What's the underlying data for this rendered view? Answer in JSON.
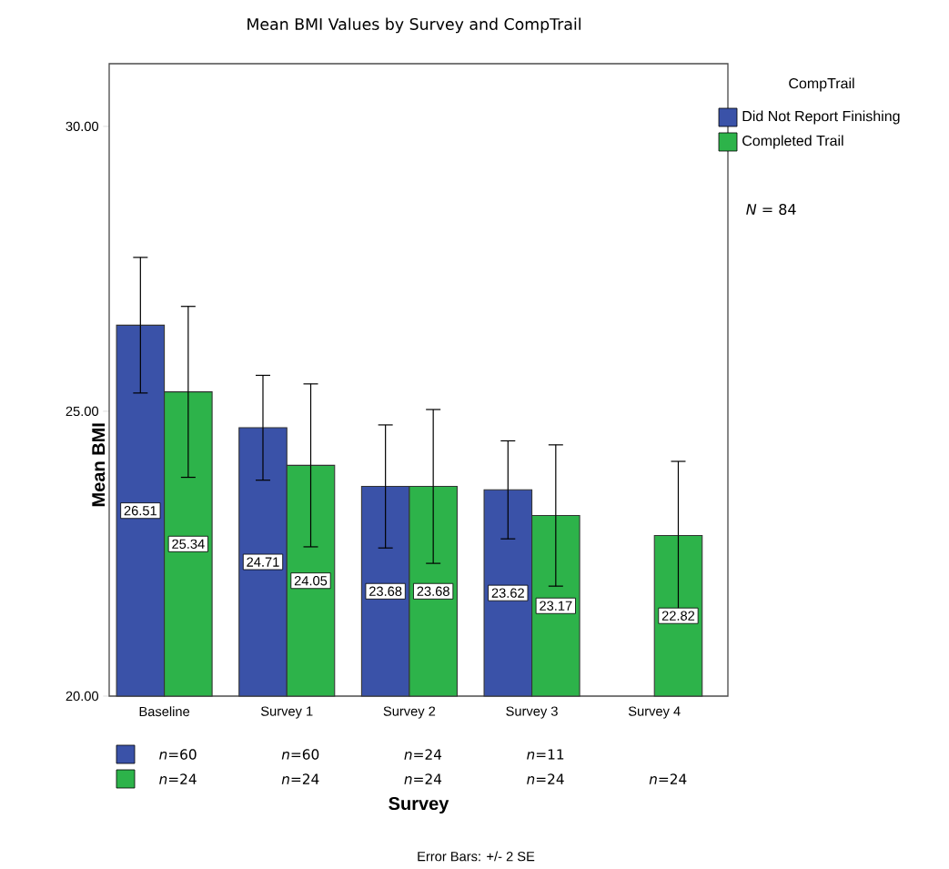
{
  "chart_data": {
    "type": "bar",
    "title": "Mean BMI Values by Survey and CompTrail",
    "xlabel": "Survey",
    "ylabel": "Mean BMI",
    "legend_title": "CompTrail",
    "categories": [
      "Baseline",
      "Survey 1",
      "Survey 2",
      "Survey 3",
      "Survey 4"
    ],
    "series": [
      {
        "name": "Did Not Report Finishing",
        "color": "#3a52a8",
        "values": [
          26.51,
          24.71,
          23.68,
          23.62,
          null
        ],
        "errors": [
          1.19,
          0.92,
          1.08,
          0.86,
          null
        ]
      },
      {
        "name": "Completed Trail",
        "color": "#2db34a",
        "values": [
          25.34,
          24.05,
          23.68,
          23.17,
          22.82
        ],
        "errors": [
          1.5,
          1.43,
          1.35,
          1.24,
          1.3
        ]
      }
    ],
    "ylim": [
      20,
      31.1
    ],
    "yticks": [
      {
        "value": 20,
        "label": "20.00"
      },
      {
        "value": 25,
        "label": "25.00"
      },
      {
        "value": 30,
        "label": "30.00"
      }
    ],
    "data_labels": true,
    "legend": "top right",
    "grid": false,
    "annotations": [
      "*n*=60",
      "*n*=60",
      "*n*=24",
      "*n*=11",
      "*n*=24",
      "*n*=24",
      "*n*=24",
      "*n*=24",
      "*n*=24",
      "*N* = 84",
      "Error Bars: +/- 2 SE"
    ]
  }
}
